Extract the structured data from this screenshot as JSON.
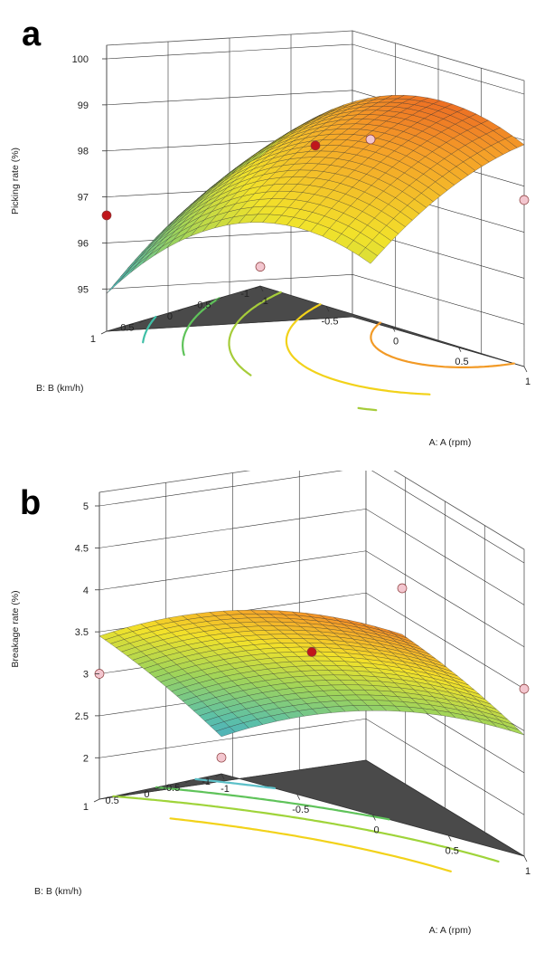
{
  "chart_data": [
    {
      "panel_label": "a",
      "type": "surface3d",
      "xlabel": "A: A (rpm)",
      "ylabel": "B: B (km/h)",
      "zlabel": "Picking rate (%)",
      "x_ticks": [
        "-1",
        "-0.5",
        "0",
        "0.5",
        "1"
      ],
      "y_ticks": [
        "-1",
        "-0.5",
        "0",
        "0.5",
        "1"
      ],
      "z_ticks": [
        "95",
        "96",
        "97",
        "98",
        "99",
        "100"
      ],
      "xlim": [
        -1,
        1
      ],
      "ylim": [
        -1,
        1
      ],
      "zlim": [
        94.2,
        100
      ],
      "model": {
        "c": 98.5,
        "a": 1.1,
        "b": -0.9,
        "ab": 0.1,
        "aa": -1.2,
        "bb": -0.3
      },
      "grid_size": [
        22,
        22
      ],
      "design_points": [
        {
          "x": 0,
          "y": 0,
          "z": 98.5,
          "color": "#c0161b"
        },
        {
          "x": -1,
          "y": 1,
          "z": 96.6,
          "color": "#c0161b"
        },
        {
          "x": -1,
          "y": -1,
          "z": 94.5,
          "color": "#f3c6cf"
        },
        {
          "x": 1,
          "y": -1,
          "z": 97.7,
          "color": "#f3c6cf"
        },
        {
          "x": 1,
          "y": 1,
          "z": 100,
          "color": "#f3c6cf"
        }
      ],
      "contours": [
        {
          "level": 95.8,
          "color": "#3fbfa6"
        },
        {
          "level": 96.6,
          "color": "#5fc35a"
        },
        {
          "level": 97.4,
          "color": "#a6cc3a"
        },
        {
          "level": 98.2,
          "color": "#f2d21a"
        },
        {
          "level": 99.0,
          "color": "#f29a26"
        }
      ],
      "grid": true,
      "colormap": [
        "#3a9bd9",
        "#5cc0a8",
        "#9fd45a",
        "#f2e22a",
        "#f5a028",
        "#e0281e"
      ]
    },
    {
      "panel_label": "b",
      "type": "surface3d",
      "xlabel": "A: A (rpm)",
      "ylabel": "B: B (km/h)",
      "zlabel": "Breakage rate (%)",
      "x_ticks": [
        "-1",
        "-0.5",
        "0",
        "0.5",
        "1"
      ],
      "y_ticks": [
        "-1",
        "-0.5",
        "0",
        "0.5",
        "1"
      ],
      "z_ticks": [
        "2",
        "2.5",
        "3",
        "3.5",
        "4",
        "4.5",
        "5"
      ],
      "xlim": [
        -1,
        1
      ],
      "ylim": [
        -1,
        1
      ],
      "zlim": [
        1.55,
        5
      ],
      "model": {
        "c": 3.55,
        "a": 0.5,
        "b": 0.75,
        "ab": 0.0,
        "aa": -0.3,
        "bb": -0.05
      },
      "grid_size": [
        22,
        22
      ],
      "design_points": [
        {
          "x": 0,
          "y": 0,
          "z": 3.6,
          "color": "#c0161b"
        },
        {
          "x": -1,
          "y": 1,
          "z": 3.0,
          "color": "#f3c6cf"
        },
        {
          "x": -1,
          "y": -1,
          "z": 1.7,
          "color": "#f3c6cf"
        },
        {
          "x": 1,
          "y": -1,
          "z": 3.5,
          "color": "#f3c6cf"
        },
        {
          "x": 1,
          "y": 1,
          "z": 5.0,
          "color": "#f3c6cf"
        }
      ],
      "contours": [
        {
          "level": 2.3,
          "color": "#5cc0c8"
        },
        {
          "level": 2.8,
          "color": "#5fc35a"
        },
        {
          "level": 3.3,
          "color": "#9fd43a"
        },
        {
          "level": 3.9,
          "color": "#f2d21a"
        },
        {
          "level": 4.5,
          "color": "#f29a26"
        }
      ],
      "grid": true,
      "colormap": [
        "#3a9bd9",
        "#5cc0a8",
        "#9fd45a",
        "#f2e22a",
        "#f5a028",
        "#e0281e"
      ]
    }
  ]
}
